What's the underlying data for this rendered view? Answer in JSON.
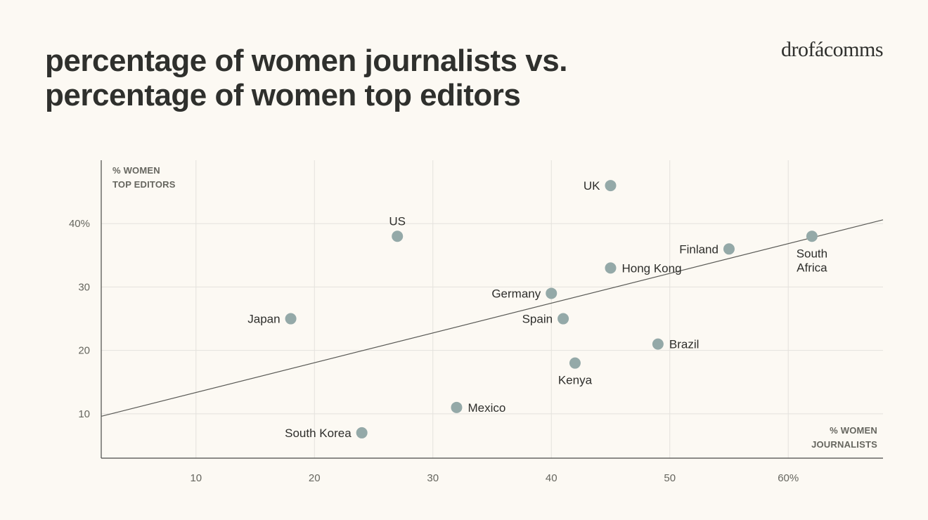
{
  "header": {
    "title_line1": "percentage of women journalists vs.",
    "title_line2": "percentage of women top editors",
    "logo": "drofácomms"
  },
  "colors": {
    "background": "#fcf9f3",
    "point": "#94a9a8",
    "trend_line": "#5a5a56",
    "text": "#2e2e2b"
  },
  "chart_data": {
    "type": "scatter",
    "xlabel": [
      "% WOMEN",
      "JOURNALISTS"
    ],
    "ylabel": [
      "% WOMEN",
      "TOP EDITORS"
    ],
    "xlim": [
      2,
      68
    ],
    "ylim": [
      3,
      50
    ],
    "x_ticks": [
      {
        "value": 10,
        "label": "10"
      },
      {
        "value": 20,
        "label": "20"
      },
      {
        "value": 30,
        "label": "30"
      },
      {
        "value": 40,
        "label": "40"
      },
      {
        "value": 50,
        "label": "50"
      },
      {
        "value": 60,
        "label": "60%"
      }
    ],
    "y_ticks": [
      {
        "value": 10,
        "label": "10"
      },
      {
        "value": 20,
        "label": "20"
      },
      {
        "value": 30,
        "label": "30"
      },
      {
        "value": 40,
        "label": "40%"
      }
    ],
    "grid": true,
    "points": [
      {
        "label": "UK",
        "x": 45,
        "y": 46,
        "label_pos": "left"
      },
      {
        "label": "US",
        "x": 27,
        "y": 38,
        "label_pos": "above"
      },
      {
        "label": "South Africa",
        "x": 62,
        "y": 38,
        "label_pos": "below"
      },
      {
        "label": "Finland",
        "x": 55,
        "y": 36,
        "label_pos": "left"
      },
      {
        "label": "Hong Kong",
        "x": 45,
        "y": 33,
        "label_pos": "right"
      },
      {
        "label": "Germany",
        "x": 40,
        "y": 29,
        "label_pos": "left"
      },
      {
        "label": "Japan",
        "x": 18,
        "y": 25,
        "label_pos": "left"
      },
      {
        "label": "Spain",
        "x": 41,
        "y": 25,
        "label_pos": "left"
      },
      {
        "label": "Brazil",
        "x": 49,
        "y": 21,
        "label_pos": "right"
      },
      {
        "label": "Kenya",
        "x": 42,
        "y": 18,
        "label_pos": "below"
      },
      {
        "label": "Mexico",
        "x": 32,
        "y": 11,
        "label_pos": "right"
      },
      {
        "label": "South Korea",
        "x": 24,
        "y": 7,
        "label_pos": "left"
      }
    ],
    "trend_line": {
      "x": [
        2,
        68
      ],
      "y": [
        9.6,
        40.6
      ]
    }
  }
}
